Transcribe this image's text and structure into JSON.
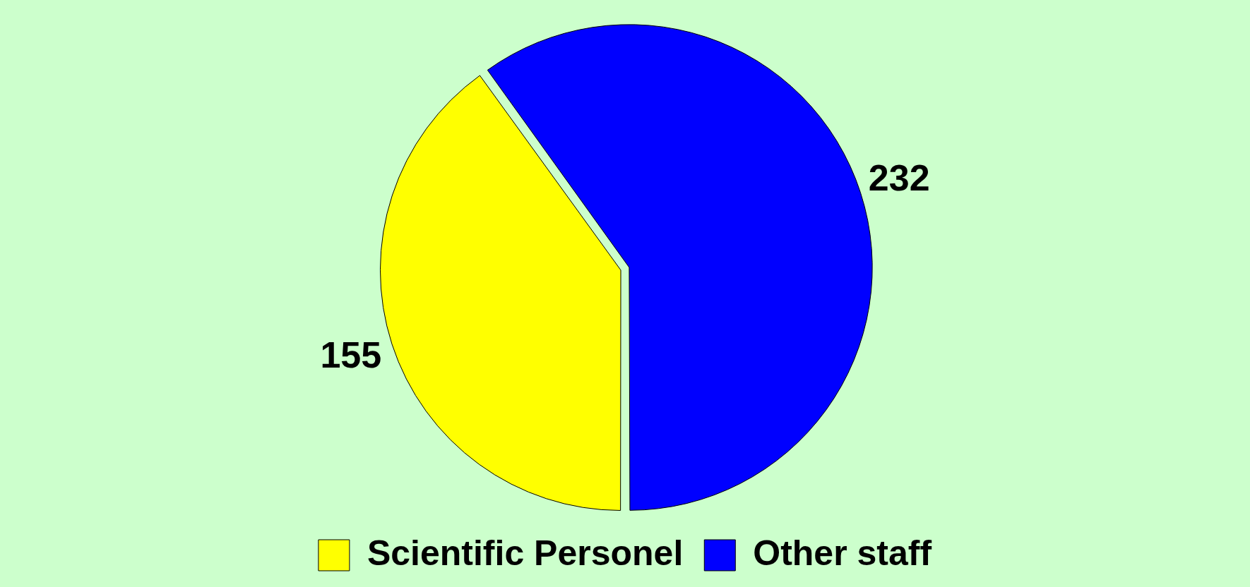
{
  "chart_data": {
    "type": "pie",
    "categories": [
      "Scientific Personel",
      "Other staff"
    ],
    "values": [
      155,
      232
    ],
    "colors": [
      "#ffff00",
      "#0000ff"
    ],
    "data_labels": true,
    "legend": "bottom"
  }
}
